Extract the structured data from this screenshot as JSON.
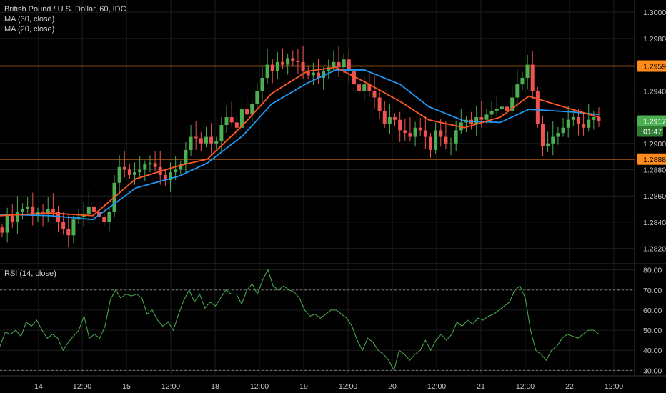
{
  "chart_data": {
    "type": "candlestick",
    "title": "British Pound / U.S. Dollar, 60, IDC",
    "overlays": [
      "MA (30, close)",
      "MA (20, close)"
    ],
    "price_axis": {
      "range": [
        1.281,
        1.3005
      ],
      "ticks": [
        "1.3000",
        "1.2980",
        "1.2959",
        "1.2940",
        "1.2917",
        "1.2900",
        "1.2888",
        "1.2880",
        "1.2860",
        "1.2840",
        "1.2820"
      ],
      "tick_values": [
        1.3,
        1.298,
        1.2959,
        1.294,
        1.2917,
        1.29,
        1.2888,
        1.288,
        1.286,
        1.284,
        1.282
      ]
    },
    "time_axis": {
      "labels": [
        "14",
        "12:00",
        "15",
        "12:00",
        "18",
        "12:00",
        "19",
        "12:00",
        "20",
        "12:00",
        "21",
        "12:00",
        "22",
        "12:00"
      ],
      "positions": [
        54,
        115,
        177,
        239,
        301,
        363,
        425,
        487,
        549,
        611,
        673,
        735,
        797,
        859
      ]
    },
    "horizontal_lines": [
      {
        "value": 1.2959,
        "color": "#ff8c1a"
      },
      {
        "value": 1.2888,
        "color": "#ff8c1a"
      },
      {
        "value": 1.2917,
        "color": "#2e7d32"
      }
    ],
    "price_badges": [
      {
        "text": "1.2959",
        "value": 1.2959,
        "bg": "#ff8c1a",
        "fg": "#000000"
      },
      {
        "text": "1.2917",
        "value": 1.2917,
        "bg": "#4caf50",
        "fg": "#ffffff"
      },
      {
        "text": "1.2888",
        "value": 1.2888,
        "bg": "#ff8c1a",
        "fg": "#000000"
      }
    ],
    "countdown": "01:47",
    "candles_close": [
      1.2832,
      1.2845,
      1.284,
      1.2848,
      1.285,
      1.2852,
      1.2845,
      1.2848,
      1.2846,
      1.285,
      1.2848,
      1.284,
      1.2835,
      1.283,
      1.2842,
      1.2844,
      1.2846,
      1.2852,
      1.2848,
      1.2844,
      1.284,
      1.2848,
      1.287,
      1.2882,
      1.288,
      1.2876,
      1.2878,
      1.288,
      1.2884,
      1.2885,
      1.2882,
      1.2876,
      1.2872,
      1.2878,
      1.288,
      1.2884,
      1.2895,
      1.2905,
      1.2904,
      1.29,
      1.2905,
      1.29,
      1.2902,
      1.2914,
      1.292,
      1.2916,
      1.2912,
      1.2926,
      1.2922,
      1.293,
      1.294,
      1.295,
      1.296,
      1.2955,
      1.2962,
      1.296,
      1.2965,
      1.2963,
      1.2962,
      1.2955,
      1.2952,
      1.2954,
      1.295,
      1.2955,
      1.2958,
      1.2962,
      1.2958,
      1.2964,
      1.2955,
      1.2945,
      1.294,
      1.2945,
      1.294,
      1.2935,
      1.2925,
      1.2915,
      1.292,
      1.2918,
      1.291,
      1.2908,
      1.2905,
      1.2912,
      1.291,
      1.2905,
      1.2895,
      1.291,
      1.2905,
      1.29,
      1.29,
      1.291,
      1.2916,
      1.2918,
      1.2915,
      1.292,
      1.2918,
      1.2922,
      1.2925,
      1.2926,
      1.2928,
      1.2925,
      1.2935,
      1.2945,
      1.295,
      1.296,
      1.294,
      1.2915,
      1.2898,
      1.29,
      1.2905,
      1.2908,
      1.2912,
      1.2918,
      1.292,
      1.2915,
      1.2912,
      1.2918,
      1.292,
      1.2917
    ],
    "ma30": [
      [
        0,
        1.2846
      ],
      [
        70,
        1.2845
      ],
      [
        130,
        1.2842
      ],
      [
        190,
        1.2866
      ],
      [
        250,
        1.2875
      ],
      [
        290,
        1.2885
      ],
      [
        340,
        1.2906
      ],
      [
        380,
        1.293
      ],
      [
        430,
        1.2946
      ],
      [
        470,
        1.2956
      ],
      [
        510,
        1.2956
      ],
      [
        560,
        1.2945
      ],
      [
        600,
        1.2928
      ],
      [
        650,
        1.2917
      ],
      [
        700,
        1.2916
      ],
      [
        740,
        1.2926
      ],
      [
        800,
        1.2924
      ],
      [
        838,
        1.2922
      ]
    ],
    "ma20": [
      [
        0,
        1.2845
      ],
      [
        70,
        1.2847
      ],
      [
        130,
        1.2845
      ],
      [
        190,
        1.2873
      ],
      [
        250,
        1.2883
      ],
      [
        290,
        1.2888
      ],
      [
        340,
        1.2914
      ],
      [
        380,
        1.2938
      ],
      [
        430,
        1.2955
      ],
      [
        470,
        1.2958
      ],
      [
        510,
        1.2947
      ],
      [
        560,
        1.2932
      ],
      [
        600,
        1.2918
      ],
      [
        650,
        1.2912
      ],
      [
        700,
        1.292
      ],
      [
        740,
        1.2936
      ],
      [
        800,
        1.2926
      ],
      [
        838,
        1.292
      ]
    ],
    "rsi": {
      "label": "RSI (14, close)",
      "range": [
        28,
        82
      ],
      "ticks": [
        "80.00",
        "70.00",
        "60.00",
        "50.00",
        "40.00",
        "30.00"
      ],
      "tick_values": [
        80,
        70,
        60,
        50,
        40,
        30
      ],
      "levels": [
        70,
        30
      ],
      "values": [
        42,
        49,
        48,
        50,
        47,
        54,
        52,
        55,
        50,
        46,
        48,
        46,
        40,
        44,
        47,
        50,
        57,
        46,
        48,
        46,
        52,
        65,
        70,
        66,
        68,
        67,
        68,
        66,
        58,
        60,
        55,
        52,
        54,
        50,
        58,
        65,
        70,
        64,
        68,
        61,
        64,
        62,
        66,
        70,
        68,
        68,
        63,
        70,
        73,
        68,
        75,
        80,
        72,
        70,
        72,
        70,
        69,
        66,
        60,
        57,
        58,
        56,
        58,
        60,
        60,
        58,
        56,
        52,
        45,
        40,
        46,
        44,
        40,
        38,
        35,
        30,
        40,
        38,
        35,
        38,
        40,
        45,
        40,
        45,
        48,
        45,
        48,
        54,
        52,
        55,
        53,
        56,
        55,
        57,
        58,
        60,
        62,
        64,
        70,
        72,
        66,
        50,
        40,
        38,
        35,
        40,
        42,
        46,
        48,
        47,
        46,
        48,
        50,
        50,
        48
      ]
    },
    "colors": {
      "up": "#4caf50",
      "down": "#ef5350",
      "ma30": "#2196f3",
      "ma20": "#ff5722",
      "rsi": "#4caf50",
      "grid": "#1e1e1e",
      "axis_text": "#c8c8c8"
    }
  }
}
